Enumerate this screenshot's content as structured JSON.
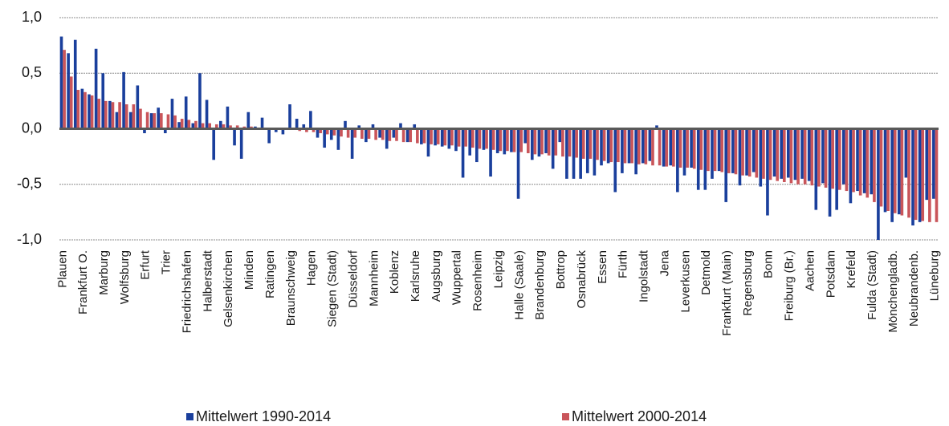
{
  "chart_data": {
    "type": "bar",
    "categories": [
      "Plauen",
      null,
      null,
      "Frankfurt O.",
      null,
      null,
      "Marburg",
      null,
      null,
      "Wolfsburg",
      null,
      null,
      "Erfurt",
      null,
      null,
      "Trier",
      null,
      null,
      "Friedrichshafen",
      null,
      null,
      "Halberstadt",
      null,
      null,
      "Gelsenkirchen",
      null,
      null,
      "Minden",
      null,
      null,
      "Ratingen",
      null,
      null,
      "Braunschweig",
      null,
      null,
      "Hagen",
      null,
      null,
      "Siegen (Stadt)",
      null,
      null,
      "Düsseldorf",
      null,
      null,
      "Mannheim",
      null,
      null,
      "Koblenz",
      null,
      null,
      "Karlsruhe",
      null,
      null,
      "Augsburg",
      null,
      null,
      "Wuppertal",
      null,
      null,
      "Rosenheim",
      null,
      null,
      "Leipzig",
      null,
      null,
      "Halle (Saale)",
      null,
      null,
      "Brandenburg",
      null,
      null,
      "Bottrop",
      null,
      null,
      "Osnabrück",
      null,
      null,
      "Essen",
      null,
      null,
      "Fürth",
      null,
      null,
      "Ingolstadt",
      null,
      null,
      "Jena",
      null,
      null,
      "Leverkusen",
      null,
      null,
      "Detmold",
      null,
      null,
      "Frankfurt (Main)",
      null,
      null,
      "Regensburg",
      null,
      null,
      "Bonn",
      null,
      null,
      "Freiburg (Br.)",
      null,
      null,
      "Aachen",
      null,
      null,
      "Potsdam",
      null,
      null,
      "Krefeld",
      null,
      null,
      "Fulda (Stadt)",
      null,
      null,
      "Mönchengladb.",
      null,
      null,
      "Neubrandenb.",
      null,
      null,
      "Lüneburg"
    ],
    "series": [
      {
        "name": "Mittelwert 1990-2014",
        "color": "#1a3f9c",
        "values": [
          0.83,
          0.68,
          0.8,
          0.36,
          0.31,
          0.72,
          0.5,
          0.25,
          0.15,
          0.51,
          0.15,
          0.39,
          -0.04,
          0.14,
          0.19,
          -0.04,
          0.27,
          0.06,
          0.29,
          0.05,
          0.5,
          0.26,
          -0.28,
          0.07,
          0.2,
          -0.15,
          -0.27,
          0.15,
          0.02,
          0.1,
          -0.13,
          -0.03,
          -0.05,
          0.22,
          0.09,
          0.04,
          0.16,
          -0.08,
          -0.17,
          -0.1,
          -0.19,
          0.07,
          -0.27,
          0.03,
          -0.12,
          0.04,
          -0.08,
          -0.18,
          -0.08,
          0.05,
          -0.12,
          0.04,
          -0.14,
          -0.25,
          -0.15,
          -0.16,
          -0.18,
          -0.2,
          -0.44,
          -0.24,
          -0.3,
          -0.19,
          -0.43,
          -0.22,
          -0.23,
          -0.21,
          -0.63,
          -0.13,
          -0.28,
          -0.25,
          -0.22,
          -0.36,
          -0.12,
          -0.45,
          -0.45,
          -0.45,
          -0.4,
          -0.42,
          -0.33,
          -0.31,
          -0.57,
          -0.4,
          -0.31,
          -0.41,
          -0.31,
          -0.29,
          0.03,
          -0.34,
          -0.33,
          -0.57,
          -0.42,
          -0.35,
          -0.55,
          -0.55,
          -0.45,
          -0.38,
          -0.66,
          -0.4,
          -0.51,
          -0.42,
          -0.39,
          -0.52,
          -0.78,
          -0.43,
          -0.45,
          -0.44,
          -0.46,
          -0.45,
          -0.47,
          -0.73,
          -0.49,
          -0.79,
          -0.73,
          -0.5,
          -0.67,
          -0.56,
          -0.58,
          -0.59,
          -1.0,
          -0.75,
          -0.84,
          -0.77,
          -0.44,
          -0.87,
          -0.84,
          -0.64,
          -0.63
        ]
      },
      {
        "name": "Mittelwert 2000-2014",
        "color": "#c9555a",
        "values": [
          0.71,
          0.47,
          0.35,
          0.33,
          0.3,
          0.27,
          0.25,
          0.24,
          0.24,
          0.22,
          0.22,
          0.18,
          0.15,
          0.14,
          0.14,
          0.13,
          0.12,
          0.09,
          0.08,
          0.07,
          0.05,
          0.05,
          0.04,
          0.04,
          0.03,
          0.03,
          0.02,
          0.02,
          0.01,
          0.01,
          0.0,
          0.0,
          -0.01,
          -0.01,
          -0.02,
          -0.03,
          -0.03,
          -0.04,
          -0.05,
          -0.06,
          -0.07,
          -0.08,
          -0.08,
          -0.09,
          -0.09,
          -0.1,
          -0.1,
          -0.11,
          -0.11,
          -0.12,
          -0.12,
          -0.13,
          -0.13,
          -0.14,
          -0.14,
          -0.15,
          -0.15,
          -0.16,
          -0.16,
          -0.17,
          -0.18,
          -0.18,
          -0.19,
          -0.2,
          -0.2,
          -0.21,
          -0.21,
          -0.22,
          -0.23,
          -0.23,
          -0.24,
          -0.24,
          -0.25,
          -0.25,
          -0.26,
          -0.27,
          -0.27,
          -0.28,
          -0.29,
          -0.3,
          -0.3,
          -0.31,
          -0.31,
          -0.32,
          -0.32,
          -0.33,
          -0.33,
          -0.34,
          -0.34,
          -0.35,
          -0.35,
          -0.36,
          -0.37,
          -0.38,
          -0.38,
          -0.39,
          -0.4,
          -0.41,
          -0.42,
          -0.43,
          -0.44,
          -0.45,
          -0.46,
          -0.47,
          -0.48,
          -0.49,
          -0.5,
          -0.5,
          -0.51,
          -0.52,
          -0.53,
          -0.54,
          -0.55,
          -0.56,
          -0.57,
          -0.6,
          -0.62,
          -0.66,
          -0.7,
          -0.74,
          -0.76,
          -0.78,
          -0.8,
          -0.82,
          -0.83,
          -0.84,
          -0.84
        ]
      }
    ],
    "ylim": [
      -1,
      1
    ],
    "yticks": [
      {
        "value": 1,
        "label": "1,0"
      },
      {
        "value": 0.5,
        "label": "0,5"
      },
      {
        "value": 0,
        "label": "0,0"
      },
      {
        "value": -0.5,
        "label": "-0,5"
      },
      {
        "value": -1,
        "label": "-1,0"
      }
    ],
    "grid": true
  }
}
